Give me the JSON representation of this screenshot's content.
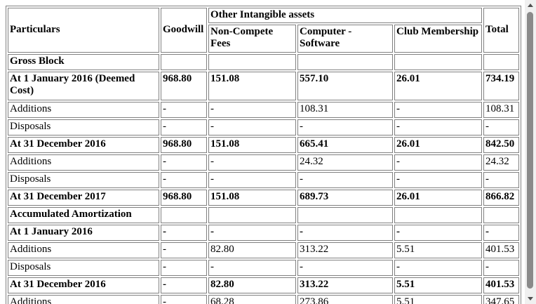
{
  "table": {
    "header": {
      "particulars": "Particulars",
      "goodwill": "Goodwill",
      "other_intangible": "Other Intangible assets",
      "non_compete": "Non-Compete Fees",
      "computer_software": "Computer - Software",
      "club_membership": "Club Membership",
      "total": "Total"
    },
    "rows": [
      {
        "label": "Gross Block",
        "goodwill": "",
        "non_compete": "",
        "software": "",
        "club": "",
        "total": "",
        "bold": true
      },
      {
        "label": "At 1 January 2016 (Deemed Cost)",
        "goodwill": "968.80",
        "non_compete": "151.08",
        "software": "557.10",
        "club": "26.01",
        "total": "734.19",
        "bold": true
      },
      {
        "label": "Additions",
        "goodwill": "-",
        "non_compete": "-",
        "software": "108.31",
        "club": "-",
        "total": "108.31",
        "bold": false
      },
      {
        "label": "Disposals",
        "goodwill": "-",
        "non_compete": "-",
        "software": "-",
        "club": "-",
        "total": "-",
        "bold": false
      },
      {
        "label": "At 31 December 2016",
        "goodwill": "968.80",
        "non_compete": "151.08",
        "software": "665.41",
        "club": "26.01",
        "total": "842.50",
        "bold": true
      },
      {
        "label": "Additions",
        "goodwill": "-",
        "non_compete": "-",
        "software": "24.32",
        "club": "-",
        "total": "24.32",
        "bold": false
      },
      {
        "label": "Disposals",
        "goodwill": "-",
        "non_compete": "-",
        "software": "-",
        "club": "-",
        "total": "-",
        "bold": false
      },
      {
        "label": "At 31 December 2017",
        "goodwill": "968.80",
        "non_compete": "151.08",
        "software": "689.73",
        "club": "26.01",
        "total": "866.82",
        "bold": true
      },
      {
        "label": "Accumulated Amortization",
        "goodwill": "",
        "non_compete": "",
        "software": "",
        "club": "",
        "total": "",
        "bold": true
      },
      {
        "label": "At 1 January 2016",
        "goodwill": "-",
        "non_compete": "-",
        "software": "-",
        "club": "-",
        "total": "-",
        "bold": true
      },
      {
        "label": "Additions",
        "goodwill": "-",
        "non_compete": "82.80",
        "software": "313.22",
        "club": "5.51",
        "total": "401.53",
        "bold": false
      },
      {
        "label": "Disposals",
        "goodwill": "-",
        "non_compete": "-",
        "software": "-",
        "club": "-",
        "total": "-",
        "bold": false
      },
      {
        "label": "At 31 December 2016",
        "goodwill": "-",
        "non_compete": "82.80",
        "software": "313.22",
        "club": "5.51",
        "total": "401.53",
        "bold": true
      },
      {
        "label": "Additions",
        "goodwill": "-",
        "non_compete": "68.28",
        "software": "273.86",
        "club": "5.51",
        "total": "347.65",
        "bold": false
      }
    ]
  }
}
